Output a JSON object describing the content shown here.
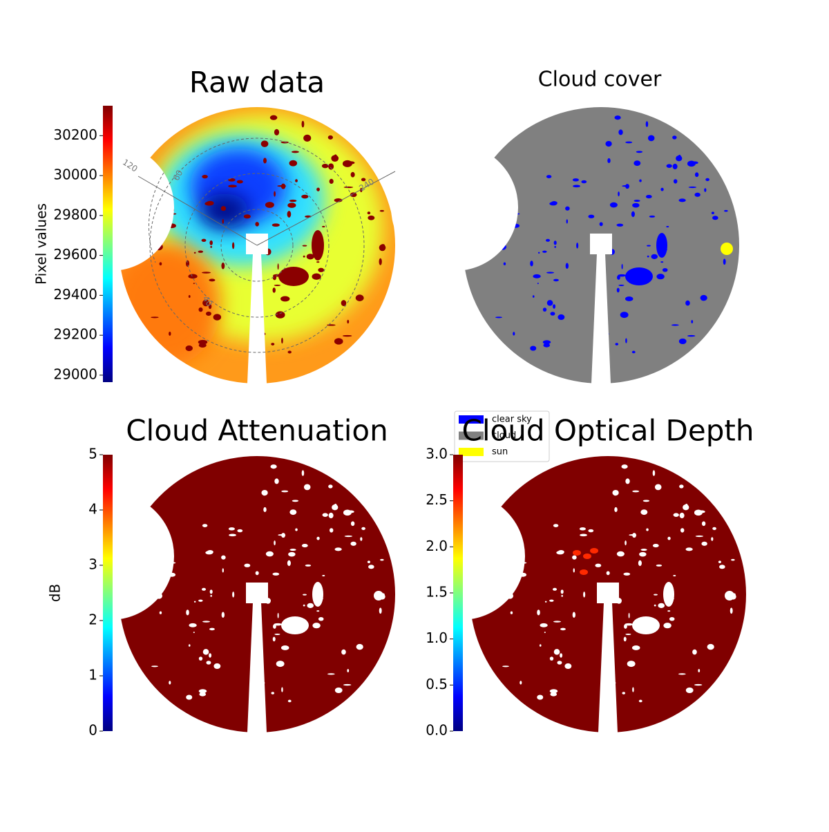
{
  "chart_data": [
    {
      "type": "image",
      "title": "Raw data",
      "colormap": "jet",
      "colorbar": {
        "label": "Pixel values",
        "ylim": [
          28965,
          30350
        ],
        "yticks": [
          29000,
          29200,
          29400,
          29600,
          29800,
          30000,
          30200
        ]
      },
      "annotations": [
        "120",
        "60",
        "240",
        "40"
      ]
    },
    {
      "type": "classes",
      "title": "Cloud cover",
      "series": [
        {
          "name": "clear sky",
          "color": "#0000ff"
        },
        {
          "name": "cloud",
          "color": "#808080"
        },
        {
          "name": "sun",
          "color": "#ffff00"
        }
      ]
    },
    {
      "type": "image",
      "title": "Cloud Attenuation",
      "colormap": "jet",
      "colorbar": {
        "label": "dB",
        "ylim": [
          0,
          5
        ],
        "yticks": [
          0,
          1,
          2,
          3,
          4,
          5
        ]
      }
    },
    {
      "type": "image",
      "title": "Cloud Optical Depth",
      "colormap": "jet",
      "colorbar": {
        "ylim": [
          0,
          3
        ],
        "yticks": [
          {
            "value": 0,
            "label": "0.0"
          },
          {
            "value": 0.5,
            "label": "0.5"
          },
          {
            "value": 1,
            "label": "1.0"
          },
          {
            "value": 1.5,
            "label": "1.5"
          },
          {
            "value": 2,
            "label": "2.0"
          },
          {
            "value": 2.5,
            "label": "2.5"
          },
          {
            "value": 3,
            "label": "3.0"
          }
        ]
      }
    }
  ]
}
